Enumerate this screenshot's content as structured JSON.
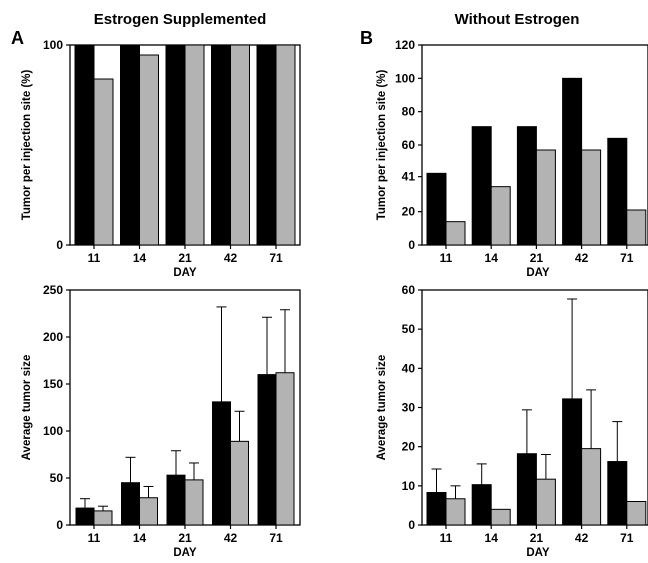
{
  "figure": {
    "column_titles": [
      "Estrogen Supplemented",
      "Without Estrogen"
    ],
    "panel_letters": [
      "A",
      "B"
    ]
  },
  "colors": {
    "series1": "#000000",
    "series2": "#b3b3b3"
  },
  "chart_data": [
    {
      "type": "bar",
      "panel": "A-top",
      "categories": [
        "11",
        "14",
        "21",
        "42",
        "71"
      ],
      "xlabel": "DAY",
      "ylabel": "Tumor per injection site (%)",
      "ylim": [
        0,
        100
      ],
      "yticks": [
        "0",
        "100"
      ],
      "series": [
        {
          "values": [
            100,
            100,
            100,
            100,
            100
          ]
        },
        {
          "values": [
            83,
            95,
            100,
            100,
            100
          ]
        }
      ]
    },
    {
      "type": "bar",
      "panel": "A-bottom",
      "categories": [
        "11",
        "14",
        "21",
        "42",
        "71"
      ],
      "xlabel": "DAY",
      "ylabel": "Average tumor size",
      "ylim": [
        0,
        250
      ],
      "yticks": [
        "0",
        "50",
        "100",
        "150",
        "200",
        "250"
      ],
      "series": [
        {
          "values": [
            18,
            45,
            53,
            131,
            160
          ],
          "errors": [
            10,
            27,
            26,
            101,
            61
          ]
        },
        {
          "values": [
            15,
            29,
            48,
            89,
            162
          ],
          "errors": [
            5,
            12,
            18,
            32,
            67
          ]
        }
      ]
    },
    {
      "type": "bar",
      "panel": "B-top",
      "categories": [
        "11",
        "14",
        "21",
        "42",
        "71"
      ],
      "xlabel": "DAY",
      "ylabel": "Tumor per injection site (%)",
      "ylim": [
        0,
        120
      ],
      "yticks": [
        "0",
        "20",
        "41",
        "60",
        "80",
        "100",
        "120"
      ],
      "series": [
        {
          "values": [
            43,
            71,
            71,
            100,
            64
          ]
        },
        {
          "values": [
            14,
            35,
            57,
            57,
            21
          ]
        }
      ]
    },
    {
      "type": "bar",
      "panel": "B-bottom",
      "categories": [
        "11",
        "14",
        "21",
        "42",
        "71"
      ],
      "xlabel": "DAY",
      "ylabel": "Average tumor size",
      "ylim": [
        0,
        60
      ],
      "yticks": [
        "0",
        "10",
        "20",
        "30",
        "40",
        "50",
        "60"
      ],
      "series": [
        {
          "values": [
            8.3,
            10.3,
            18.2,
            32.2,
            16.2
          ],
          "errors": [
            6,
            5.3,
            11.2,
            25.5,
            10.2
          ]
        },
        {
          "values": [
            6.7,
            4.0,
            11.7,
            19.5,
            6.0
          ],
          "errors": [
            3.3,
            null,
            6.3,
            15,
            null
          ]
        }
      ]
    }
  ]
}
